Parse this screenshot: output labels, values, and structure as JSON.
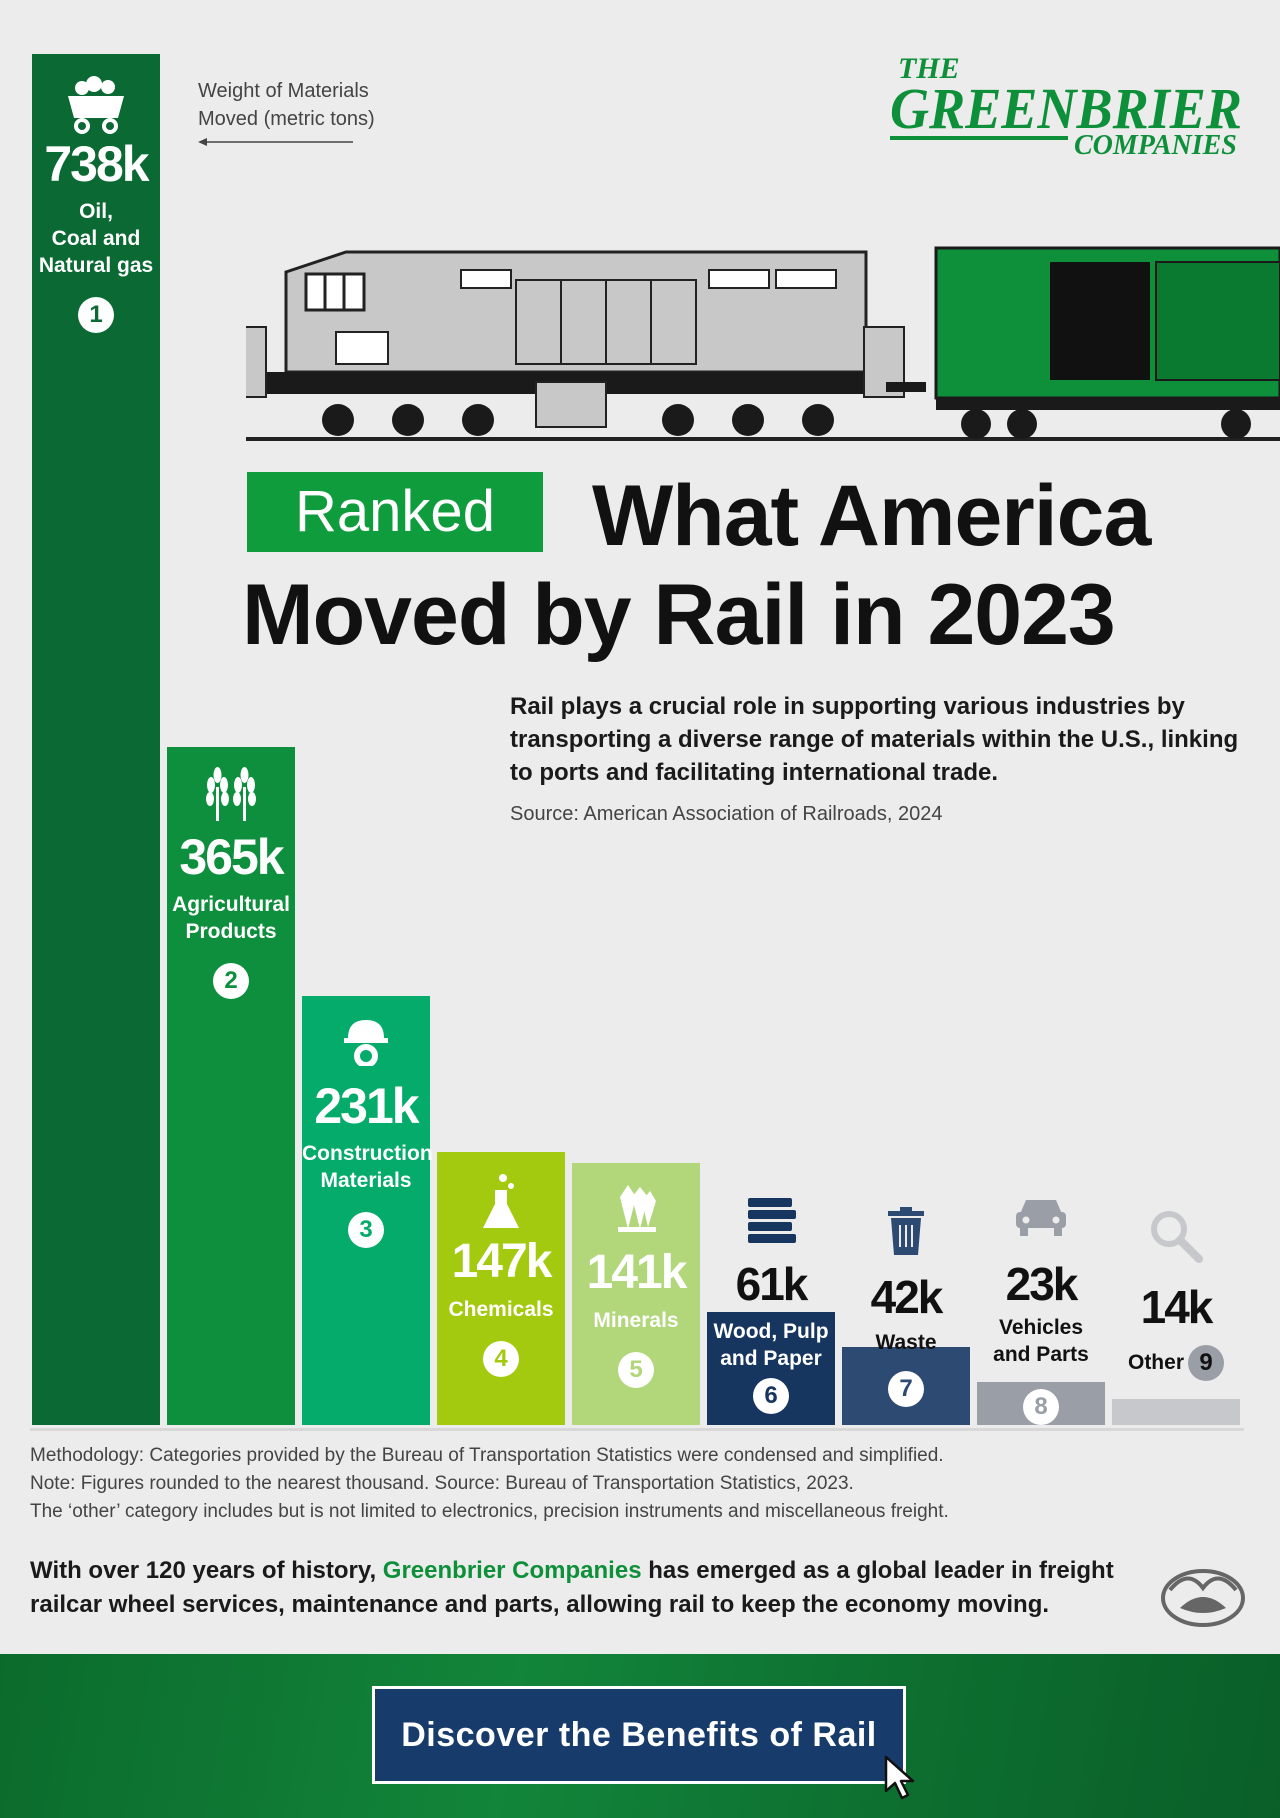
{
  "legend": {
    "line1": "Weight of Materials",
    "line2": "Moved (metric tons)"
  },
  "logo": {
    "the": "THE",
    "name": "GREENBRIER",
    "companies": "COMPANIES"
  },
  "header": {
    "ranked": "Ranked",
    "title_line1": "What America",
    "title_line2": "Moved by Rail in 2023"
  },
  "intro": {
    "text": "Rail plays a crucial role in supporting various industries by transporting a diverse range of materials within the U.S., linking to ports and facilitating international trade.",
    "source": "Source: American Association of Railroads, 2024"
  },
  "chart_data": {
    "type": "bar",
    "unit": "metric tons",
    "categories": [
      "Oil, Coal and Natural gas",
      "Agricultural Products",
      "Construction Materials",
      "Chemicals",
      "Minerals",
      "Wood, Pulp and Paper",
      "Waste",
      "Vehicles and Parts",
      "Other"
    ],
    "values": [
      738000,
      365000,
      231000,
      147000,
      141000,
      61000,
      42000,
      23000,
      14000
    ],
    "value_labels": [
      "738k",
      "365k",
      "231k",
      "147k",
      "141k",
      "61k",
      "42k",
      "23k",
      "14k"
    ],
    "ranks": [
      "1",
      "2",
      "3",
      "4",
      "5",
      "6",
      "7",
      "8",
      "9"
    ],
    "label_lines": [
      [
        "Oil,",
        "Coal and",
        "Natural gas"
      ],
      [
        "Agricultural",
        "Products"
      ],
      [
        "Construction",
        "Materials"
      ],
      [
        "Chemicals"
      ],
      [
        "Minerals"
      ],
      [
        "Wood, Pulp",
        "and Paper"
      ],
      [
        "Waste"
      ],
      [
        "Vehicles",
        "and Parts"
      ],
      [
        "Other"
      ]
    ],
    "colors": [
      "#0b6a34",
      "#0e8f3d",
      "#04ab6b",
      "#a4ca0f",
      "#b2d67a",
      "#17365f",
      "#2c4a72",
      "#9a9ea6",
      "#c6c8cc"
    ],
    "icons": [
      "coal-cart-icon",
      "wheat-icon",
      "hardhat-gear-icon",
      "flask-icon",
      "crystal-icon",
      "lumber-stack-icon",
      "trash-can-icon",
      "car-icon",
      "magnifier-icon"
    ],
    "ylim": [
      0,
      738000
    ]
  },
  "notes": {
    "line1": "Methodology: Categories provided by the Bureau of Transportation Statistics were condensed and simplified.",
    "line2": "Note: Figures rounded to the nearest thousand. Source: Bureau of Transportation Statistics, 2023.",
    "line3": "The ‘other’ category includes but is not limited to electronics, precision instruments and miscellaneous freight."
  },
  "about": {
    "before": "With over 120 years of history, ",
    "highlight": "Greenbrier Companies",
    "after": " has emerged as a global leader in freight railcar wheel services, maintenance and parts, allowing rail to keep the economy moving."
  },
  "footer": {
    "cta_label": "Discover the Benefits of Rail"
  }
}
